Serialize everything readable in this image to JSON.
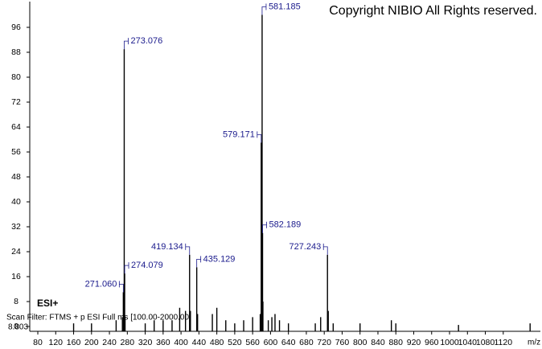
{
  "chart_data": {
    "type": "spectrum",
    "title": "Copyright NIBIO All Rights reserved.",
    "ionization": "ESI+",
    "scan_filter": "Scan Filter: FTMS + p ESI Full ms [100.00-2000.00]",
    "intensity": "8.803",
    "x_label": "m/z",
    "color": "#000000",
    "label_color": "#1a1a8c",
    "x": [
      160,
      200,
      255,
      269,
      271.06,
      273.076,
      274.079,
      275,
      320,
      340,
      360,
      380,
      397,
      410,
      419.134,
      421,
      435.129,
      437,
      470,
      480,
      500,
      520,
      540,
      560,
      577,
      579.171,
      580,
      581.185,
      582.189,
      583,
      595,
      603,
      610,
      620,
      640,
      700,
      712,
      727.243,
      729,
      740,
      800,
      870,
      880,
      1020,
      1180
    ],
    "values": [
      1,
      1,
      2,
      3,
      11,
      89,
      17,
      3,
      1,
      2,
      2,
      2,
      6,
      5,
      23,
      5,
      19,
      4,
      4,
      6,
      2,
      1,
      2,
      3,
      4,
      59,
      12,
      100,
      30,
      8,
      2,
      3,
      4,
      2,
      1,
      1,
      3,
      23,
      5,
      1,
      1,
      2,
      1,
      0.5,
      1
    ],
    "peak_labels": [
      null,
      null,
      null,
      null,
      "271.060",
      "273.076",
      "274.079",
      null,
      null,
      null,
      null,
      null,
      null,
      null,
      "419.134",
      null,
      "435.129",
      null,
      null,
      null,
      null,
      null,
      null,
      null,
      null,
      "579.171",
      null,
      "581.185",
      "582.189",
      null,
      null,
      null,
      null,
      null,
      null,
      null,
      null,
      "727.243",
      null,
      null,
      null,
      null,
      null,
      null,
      null
    ],
    "xlim": [
      62,
      1203
    ],
    "ylim": [
      0,
      100
    ],
    "xticks": [
      80,
      120,
      160,
      200,
      240,
      280,
      320,
      360,
      400,
      440,
      480,
      520,
      560,
      600,
      640,
      680,
      720,
      760,
      800,
      840,
      880,
      920,
      960,
      1000,
      1040,
      1080,
      1120
    ],
    "yticks": [
      0,
      8,
      16,
      24,
      32,
      40,
      48,
      56,
      64,
      72,
      80,
      88,
      96
    ]
  }
}
